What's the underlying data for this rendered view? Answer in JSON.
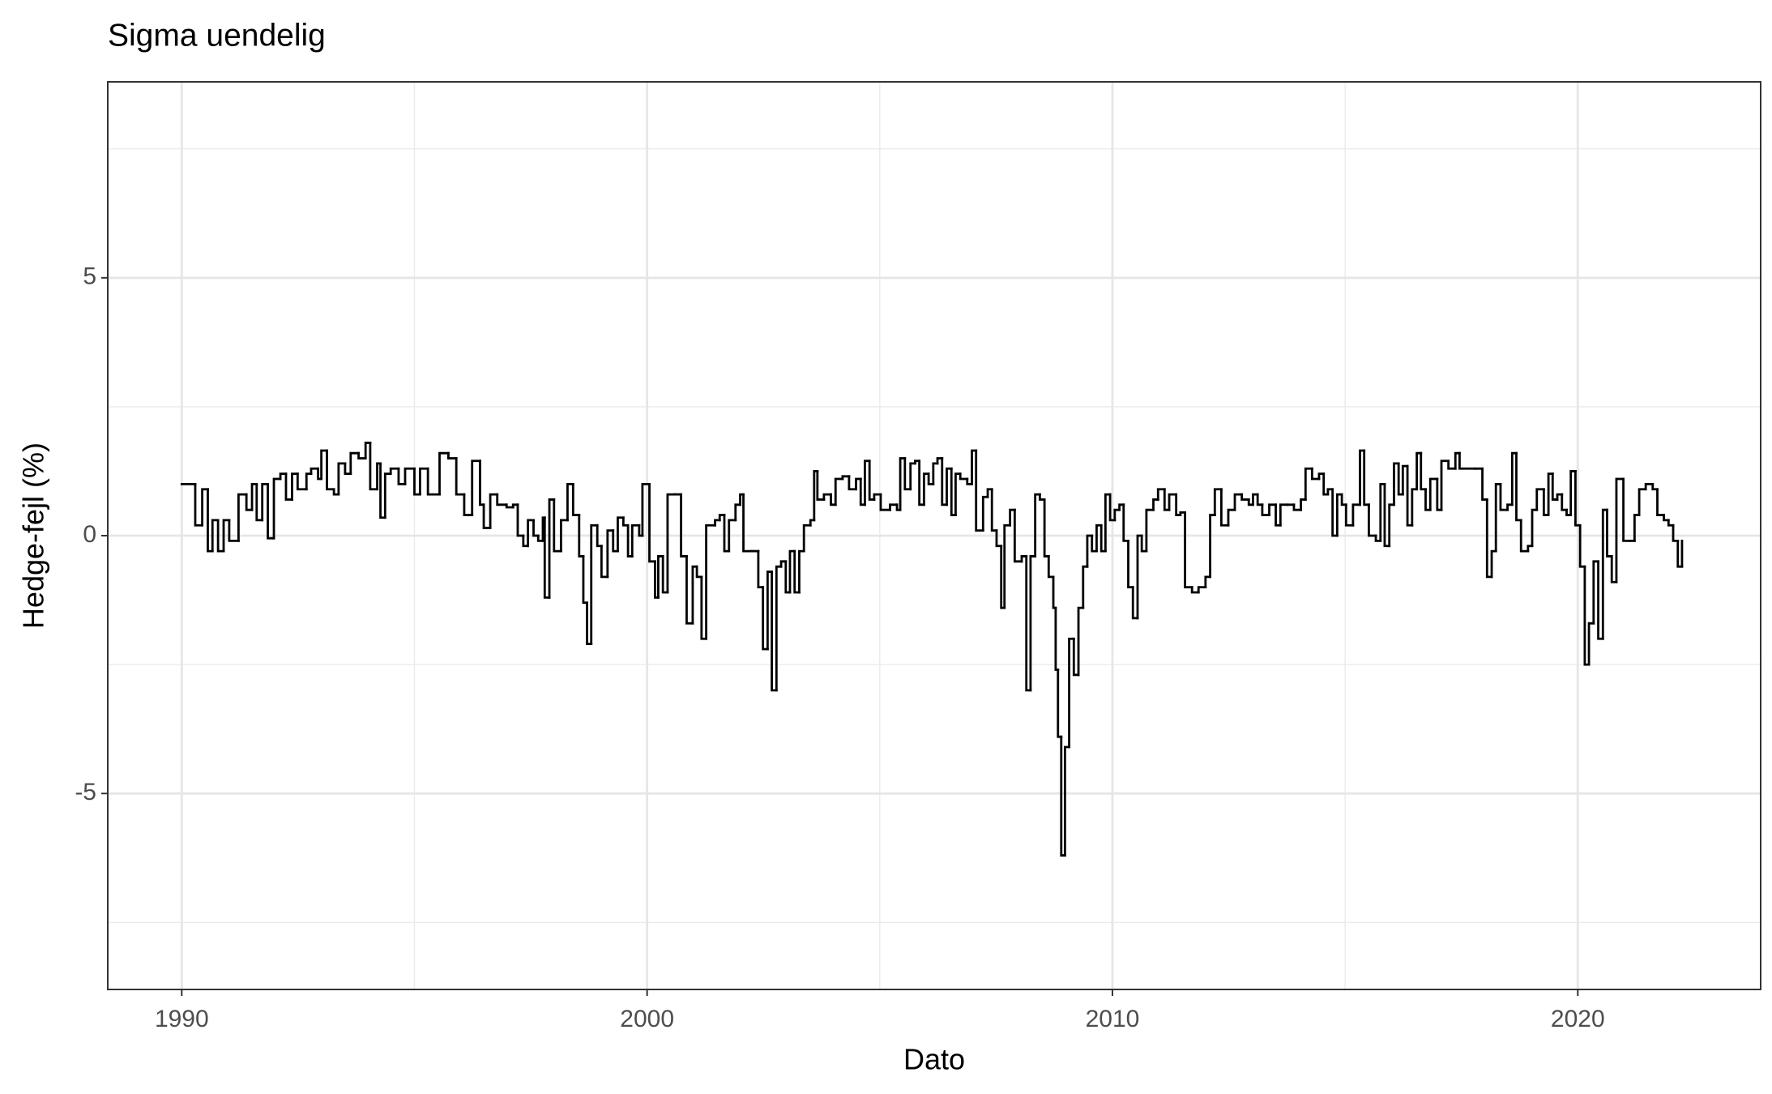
{
  "chart_data": {
    "type": "line",
    "title": "Sigma uendelig",
    "xlabel": "Dato",
    "ylabel": "Hedge-fejl (%)",
    "step": "post",
    "grid": true,
    "xlim": [
      1988.41,
      2023.93
    ],
    "xticks": [
      1990,
      2000,
      2010,
      2020
    ],
    "xminor": [
      1995,
      2005,
      2015
    ],
    "ylim": [
      -8.8,
      8.8
    ],
    "yticks": [
      -5,
      0,
      5
    ],
    "yminor": [
      -7.5,
      -2.5,
      2.5,
      7.5
    ],
    "x": [
      1990.0,
      1990.29,
      1990.44,
      1990.56,
      1990.66,
      1990.78,
      1990.9,
      1991.02,
      1991.22,
      1991.39,
      1991.51,
      1991.61,
      1991.73,
      1991.85,
      1991.98,
      1992.12,
      1992.24,
      1992.37,
      1992.49,
      1992.68,
      1992.78,
      1992.93,
      1993.0,
      1993.12,
      1993.27,
      1993.37,
      1993.51,
      1993.63,
      1993.8,
      1993.95,
      1994.05,
      1994.2,
      1994.27,
      1994.37,
      1994.49,
      1994.66,
      1994.8,
      1995.0,
      1995.12,
      1995.29,
      1995.54,
      1995.73,
      1995.9,
      1996.07,
      1996.24,
      1996.41,
      1996.49,
      1996.63,
      1996.78,
      1996.98,
      1997.12,
      1997.22,
      1997.34,
      1997.44,
      1997.56,
      1997.66,
      1997.76,
      1997.8,
      1997.9,
      1998.0,
      1998.15,
      1998.29,
      1998.41,
      1998.54,
      1998.63,
      1998.71,
      1998.8,
      1998.93,
      1999.02,
      1999.15,
      1999.27,
      1999.37,
      1999.49,
      1999.59,
      1999.68,
      1999.83,
      1999.9,
      2000.05,
      2000.17,
      2000.24,
      2000.34,
      2000.44,
      2000.59,
      2000.73,
      2000.85,
      2000.98,
      2001.07,
      2001.17,
      2001.27,
      2001.46,
      2001.56,
      2001.66,
      2001.76,
      2001.9,
      2002.0,
      2002.07,
      2002.24,
      2002.39,
      2002.49,
      2002.59,
      2002.68,
      2002.78,
      2002.88,
      2002.98,
      2003.07,
      2003.17,
      2003.27,
      2003.37,
      2003.51,
      2003.59,
      2003.66,
      2003.8,
      2003.95,
      2004.05,
      2004.2,
      2004.34,
      2004.49,
      2004.59,
      2004.68,
      2004.78,
      2004.88,
      2005.02,
      2005.22,
      2005.37,
      2005.44,
      2005.54,
      2005.66,
      2005.76,
      2005.85,
      2005.95,
      2006.05,
      2006.15,
      2006.24,
      2006.34,
      2006.44,
      2006.54,
      2006.63,
      2006.73,
      2006.88,
      2006.98,
      2007.07,
      2007.22,
      2007.32,
      2007.41,
      2007.51,
      2007.61,
      2007.68,
      2007.8,
      2007.9,
      2008.05,
      2008.15,
      2008.24,
      2008.34,
      2008.44,
      2008.54,
      2008.63,
      2008.73,
      2008.78,
      2008.83,
      2008.9,
      2008.98,
      2009.07,
      2009.17,
      2009.27,
      2009.37,
      2009.46,
      2009.56,
      2009.66,
      2009.76,
      2009.85,
      2009.95,
      2010.05,
      2010.15,
      2010.24,
      2010.34,
      2010.44,
      2010.54,
      2010.63,
      2010.73,
      2010.88,
      2010.98,
      2011.12,
      2011.22,
      2011.37,
      2011.46,
      2011.56,
      2011.71,
      2011.85,
      2012.0,
      2012.1,
      2012.2,
      2012.34,
      2012.49,
      2012.63,
      2012.78,
      2012.93,
      2013.02,
      2013.12,
      2013.22,
      2013.37,
      2013.51,
      2013.61,
      2013.76,
      2013.9,
      2014.05,
      2014.15,
      2014.29,
      2014.44,
      2014.54,
      2014.63,
      2014.73,
      2014.83,
      2014.93,
      2015.02,
      2015.17,
      2015.32,
      2015.41,
      2015.51,
      2015.66,
      2015.76,
      2015.85,
      2015.95,
      2016.05,
      2016.15,
      2016.24,
      2016.34,
      2016.44,
      2016.54,
      2016.63,
      2016.73,
      2016.83,
      2016.98,
      2017.07,
      2017.22,
      2017.37,
      2017.46,
      2017.8,
      2017.95,
      2018.05,
      2018.15,
      2018.24,
      2018.34,
      2018.49,
      2018.59,
      2018.68,
      2018.78,
      2018.93,
      2019.02,
      2019.12,
      2019.27,
      2019.37,
      2019.46,
      2019.56,
      2019.66,
      2019.76,
      2019.85,
      2019.95,
      2020.05,
      2020.15,
      2020.24,
      2020.34,
      2020.44,
      2020.54,
      2020.63,
      2020.73,
      2020.83,
      2020.98,
      2021.12,
      2021.22,
      2021.32,
      2021.46,
      2021.61,
      2021.71,
      2021.85,
      2021.95,
      2022.05,
      2022.15,
      2022.24
    ],
    "series": [
      {
        "color": "#000000",
        "values": [
          1.0,
          0.2,
          0.9,
          -0.3,
          0.3,
          -0.3,
          0.3,
          -0.1,
          0.8,
          0.5,
          1.0,
          0.3,
          1.0,
          -0.05,
          1.1,
          1.2,
          0.7,
          1.2,
          0.9,
          1.2,
          1.3,
          1.1,
          1.65,
          0.9,
          0.8,
          1.4,
          1.2,
          1.6,
          1.5,
          1.8,
          0.9,
          1.4,
          0.35,
          1.2,
          1.3,
          1.0,
          1.3,
          0.8,
          1.3,
          0.8,
          1.6,
          1.5,
          0.8,
          0.4,
          1.45,
          0.6,
          0.15,
          0.8,
          0.6,
          0.55,
          0.6,
          0.0,
          -0.2,
          0.3,
          0.0,
          -0.1,
          0.35,
          -1.2,
          0.7,
          -0.3,
          0.3,
          1.0,
          0.4,
          -0.4,
          -1.3,
          -2.1,
          0.2,
          -0.2,
          -0.8,
          0.1,
          -0.3,
          0.35,
          0.2,
          -0.4,
          0.2,
          0.0,
          1.0,
          -0.5,
          -1.2,
          -0.4,
          -1.1,
          0.8,
          0.8,
          -0.4,
          -1.7,
          -0.6,
          -0.8,
          -2.0,
          0.2,
          0.3,
          0.4,
          -0.3,
          0.3,
          0.6,
          0.8,
          -0.3,
          -0.3,
          -1.0,
          -2.2,
          -0.7,
          -3.0,
          -0.6,
          -0.5,
          -1.1,
          -0.3,
          -1.1,
          -0.3,
          0.2,
          0.3,
          1.25,
          0.7,
          0.8,
          0.6,
          1.1,
          1.15,
          0.9,
          1.1,
          0.6,
          1.45,
          0.7,
          0.8,
          0.5,
          0.6,
          0.5,
          1.5,
          0.9,
          1.4,
          1.45,
          0.6,
          1.2,
          1.0,
          1.4,
          1.5,
          0.6,
          1.3,
          0.4,
          1.2,
          1.1,
          1.0,
          1.65,
          0.1,
          0.75,
          0.9,
          0.1,
          -0.2,
          -1.4,
          0.2,
          0.5,
          -0.5,
          -0.4,
          -3.0,
          -0.4,
          0.8,
          0.7,
          -0.4,
          -0.8,
          -1.4,
          -2.6,
          -3.9,
          -6.2,
          -4.1,
          -2.0,
          -2.7,
          -1.4,
          -0.6,
          0.0,
          -0.3,
          0.2,
          -0.3,
          0.8,
          0.3,
          0.5,
          0.6,
          -0.1,
          -1.0,
          -1.6,
          0.0,
          -0.3,
          0.5,
          0.7,
          0.9,
          0.5,
          0.8,
          0.4,
          0.45,
          -1.0,
          -1.1,
          -1.0,
          -0.8,
          0.4,
          0.9,
          0.2,
          0.5,
          0.8,
          0.7,
          0.6,
          0.8,
          0.6,
          0.4,
          0.6,
          0.2,
          0.6,
          0.6,
          0.5,
          0.7,
          1.3,
          1.1,
          1.2,
          0.8,
          0.9,
          0.0,
          0.8,
          0.6,
          0.2,
          0.6,
          1.65,
          0.6,
          0.0,
          -0.1,
          1.0,
          -0.2,
          0.6,
          1.4,
          0.8,
          1.35,
          0.2,
          0.9,
          1.6,
          0.9,
          0.5,
          1.1,
          0.5,
          1.45,
          1.3,
          1.6,
          1.3,
          1.3,
          0.7,
          -0.8,
          -0.3,
          1.0,
          0.5,
          0.6,
          1.6,
          0.3,
          -0.3,
          -0.2,
          0.5,
          0.9,
          0.4,
          1.2,
          0.7,
          0.8,
          0.5,
          0.4,
          1.25,
          0.2,
          -0.6,
          -2.5,
          -1.7,
          -0.5,
          -2.0,
          0.5,
          -0.4,
          -0.9,
          1.1,
          -0.1,
          -0.1,
          0.4,
          0.9,
          1.0,
          0.9,
          0.4,
          0.3,
          0.2,
          -0.1,
          -0.6,
          -0.1
        ]
      }
    ]
  }
}
